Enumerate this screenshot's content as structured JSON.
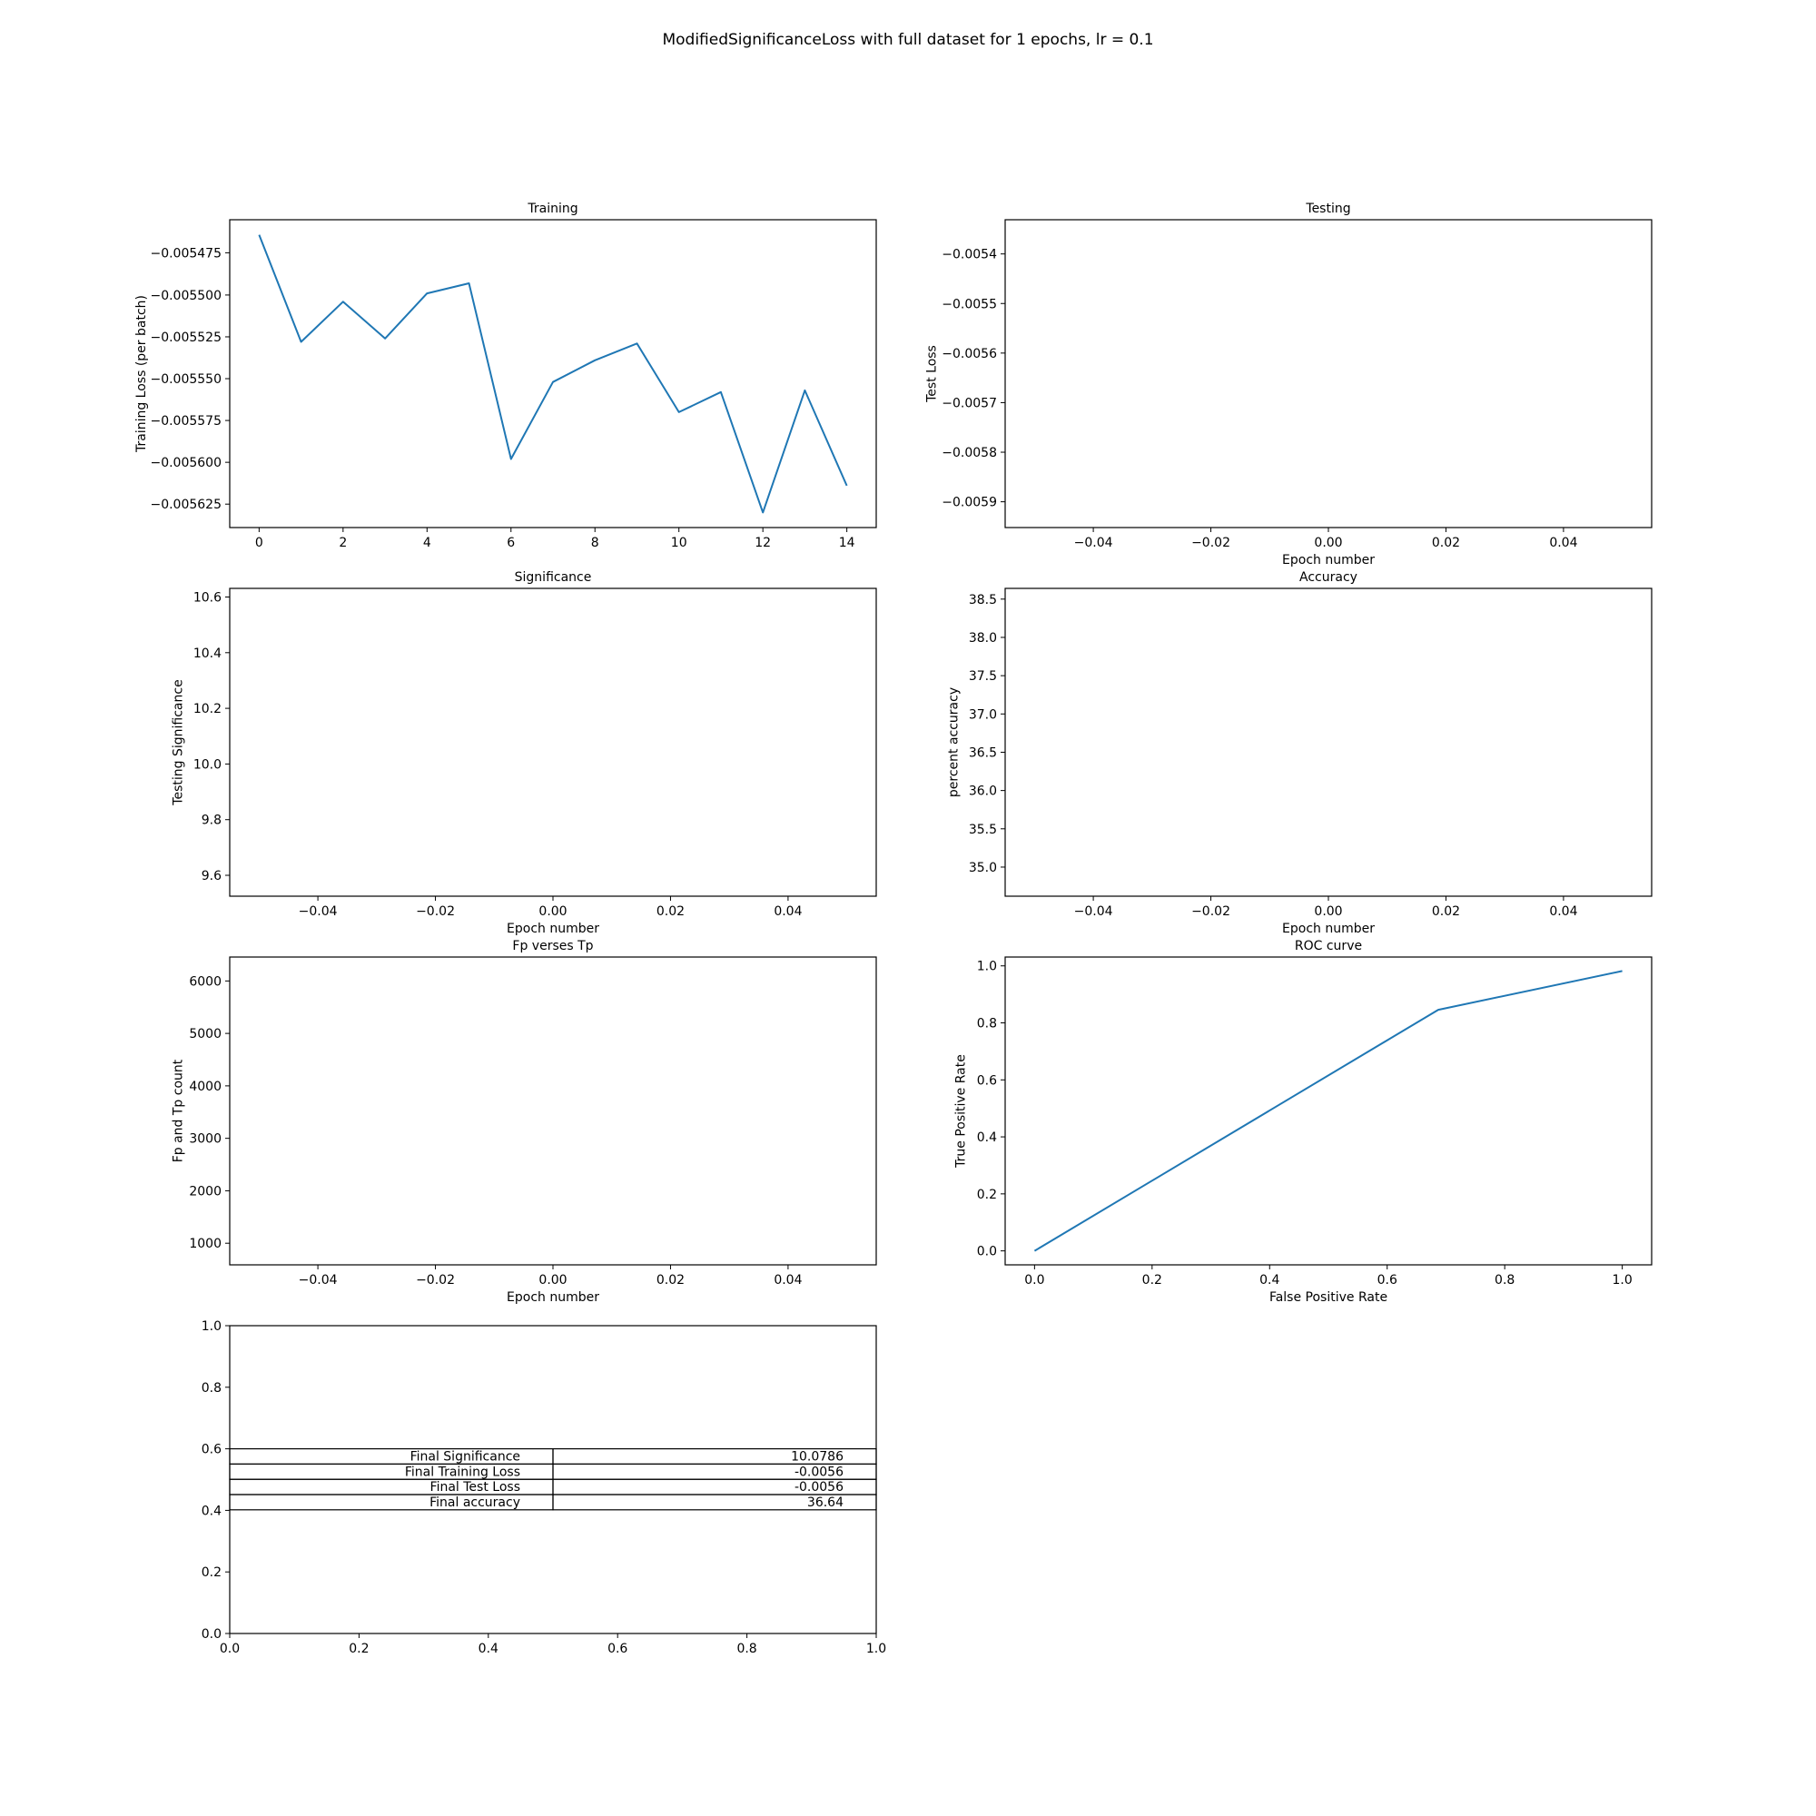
{
  "figure": {
    "suptitle": "ModifiedSignificanceLoss with full dataset for 1 epochs, lr = 0.1"
  },
  "line_color": "#1f77b4",
  "chart_data": [
    {
      "id": "training",
      "type": "line",
      "title": "Training",
      "xlabel": "",
      "ylabel": "Training Loss (per batch)",
      "xlim": [
        -0.7,
        14.7
      ],
      "ylim": [
        -0.005639,
        -0.005455
      ],
      "xticks": [
        0,
        2,
        4,
        6,
        8,
        10,
        12,
        14
      ],
      "xtick_labels": [
        "0",
        "2",
        "4",
        "6",
        "8",
        "10",
        "12",
        "14"
      ],
      "yticks": [
        -0.00547475,
        -0.0055,
        -0.005525,
        -0.00555,
        -0.005575,
        -0.0056,
        -0.005625
      ],
      "ytick_labels": [
        "−0.005475",
        "−0.005500",
        "−0.005525",
        "−0.005550",
        "−0.005575",
        "−0.005600",
        "−0.005625"
      ],
      "series": [
        {
          "x": [
            0,
            1,
            2,
            3,
            4,
            5,
            6,
            7,
            8,
            9,
            10,
            11,
            12,
            13,
            14
          ],
          "values": [
            -0.005464,
            -0.005528,
            -0.005504,
            -0.005526,
            -0.005499,
            -0.005493,
            -0.005598,
            -0.005552,
            -0.005539,
            -0.005529,
            -0.00557,
            -0.005558,
            -0.00563,
            -0.005557,
            -0.005614
          ]
        }
      ]
    },
    {
      "id": "testing",
      "type": "line",
      "title": "Testing",
      "xlabel": "Epoch number",
      "ylabel": "Test Loss",
      "xlim": [
        -0.055,
        0.055
      ],
      "ylim": [
        -0.005952,
        -0.005331
      ],
      "xticks": [
        -0.04,
        -0.02,
        0.0,
        0.02,
        0.04
      ],
      "xtick_labels": [
        "−0.04",
        "−0.02",
        "0.00",
        "0.02",
        "0.04"
      ],
      "yticks": [
        -0.0054,
        -0.0055,
        -0.0056,
        -0.0057,
        -0.0058,
        -0.0059
      ],
      "ytick_labels": [
        "−0.0054",
        "−0.0055",
        "−0.0056",
        "−0.0057",
        "−0.0058",
        "−0.0059"
      ],
      "series": []
    },
    {
      "id": "significance",
      "type": "line",
      "title": "Significance",
      "xlabel": "Epoch number",
      "ylabel": "Testing Significance",
      "xlim": [
        -0.055,
        0.055
      ],
      "ylim": [
        9.525,
        10.631
      ],
      "xticks": [
        -0.04,
        -0.02,
        0.0,
        0.02,
        0.04
      ],
      "xtick_labels": [
        "−0.04",
        "−0.02",
        "0.00",
        "0.02",
        "0.04"
      ],
      "yticks": [
        9.6,
        9.8,
        10.0,
        10.2,
        10.4,
        10.6
      ],
      "ytick_labels": [
        "9.6",
        "9.8",
        "10.0",
        "10.2",
        "10.4",
        "10.6"
      ],
      "series": []
    },
    {
      "id": "accuracy",
      "type": "line",
      "title": "Accuracy",
      "xlabel": "Epoch number",
      "ylabel": "percent accuracy",
      "xlim": [
        -0.055,
        0.055
      ],
      "ylim": [
        34.62,
        38.64
      ],
      "xticks": [
        -0.04,
        -0.02,
        0.0,
        0.02,
        0.04
      ],
      "xtick_labels": [
        "−0.04",
        "−0.02",
        "0.00",
        "0.02",
        "0.04"
      ],
      "yticks": [
        35.0,
        35.5,
        36.0,
        36.5,
        37.0,
        37.5,
        38.0,
        38.5
      ],
      "ytick_labels": [
        "35.0",
        "35.5",
        "36.0",
        "36.5",
        "37.0",
        "37.5",
        "38.0",
        "38.5"
      ],
      "series": []
    },
    {
      "id": "fp-tp",
      "type": "line",
      "title": "Fp verses Tp",
      "xlabel": "Epoch number",
      "ylabel": "Fp and Tp count",
      "xlim": [
        -0.055,
        0.055
      ],
      "ylim": [
        588,
        6456
      ],
      "xticks": [
        -0.04,
        -0.02,
        0.0,
        0.02,
        0.04
      ],
      "xtick_labels": [
        "−0.04",
        "−0.02",
        "0.00",
        "0.02",
        "0.04"
      ],
      "yticks": [
        1000,
        2000,
        3000,
        4000,
        5000,
        6000
      ],
      "ytick_labels": [
        "1000",
        "2000",
        "3000",
        "4000",
        "5000",
        "6000"
      ],
      "series": []
    },
    {
      "id": "roc",
      "type": "line",
      "title": "ROC curve",
      "xlabel": "False Positive Rate",
      "ylabel": "True Positive Rate",
      "xlim": [
        -0.05,
        1.05
      ],
      "ylim": [
        -0.049,
        1.031
      ],
      "xticks": [
        0.0,
        0.2,
        0.4,
        0.6,
        0.8,
        1.0
      ],
      "xtick_labels": [
        "0.0",
        "0.2",
        "0.4",
        "0.6",
        "0.8",
        "1.0"
      ],
      "yticks": [
        0.0,
        0.2,
        0.4,
        0.6,
        0.8,
        1.0
      ],
      "ytick_labels": [
        "0.0",
        "0.2",
        "0.4",
        "0.6",
        "0.8",
        "1.0"
      ],
      "series": [
        {
          "x": [
            0.0,
            0.687,
            1.0
          ],
          "values": [
            0.0,
            0.846,
            0.982
          ]
        }
      ]
    },
    {
      "id": "summary",
      "type": "table",
      "title": "",
      "xlabel": "",
      "ylabel": "",
      "xlim": [
        0,
        1
      ],
      "ylim": [
        0,
        1
      ],
      "xticks": [
        0.0,
        0.2,
        0.4,
        0.6,
        0.8,
        1.0
      ],
      "xtick_labels": [
        "0.0",
        "0.2",
        "0.4",
        "0.6",
        "0.8",
        "1.0"
      ],
      "yticks": [
        0.0,
        0.2,
        0.4,
        0.6,
        0.8,
        1.0
      ],
      "ytick_labels": [
        "0.0",
        "0.2",
        "0.4",
        "0.6",
        "0.8",
        "1.0"
      ],
      "table": {
        "rows": [
          [
            "Final Significance",
            "10.0786"
          ],
          [
            "Final Training Loss",
            "-0.0056"
          ],
          [
            "Final Test Loss",
            "-0.0056"
          ],
          [
            "Final accuracy",
            "36.64"
          ]
        ]
      }
    }
  ]
}
